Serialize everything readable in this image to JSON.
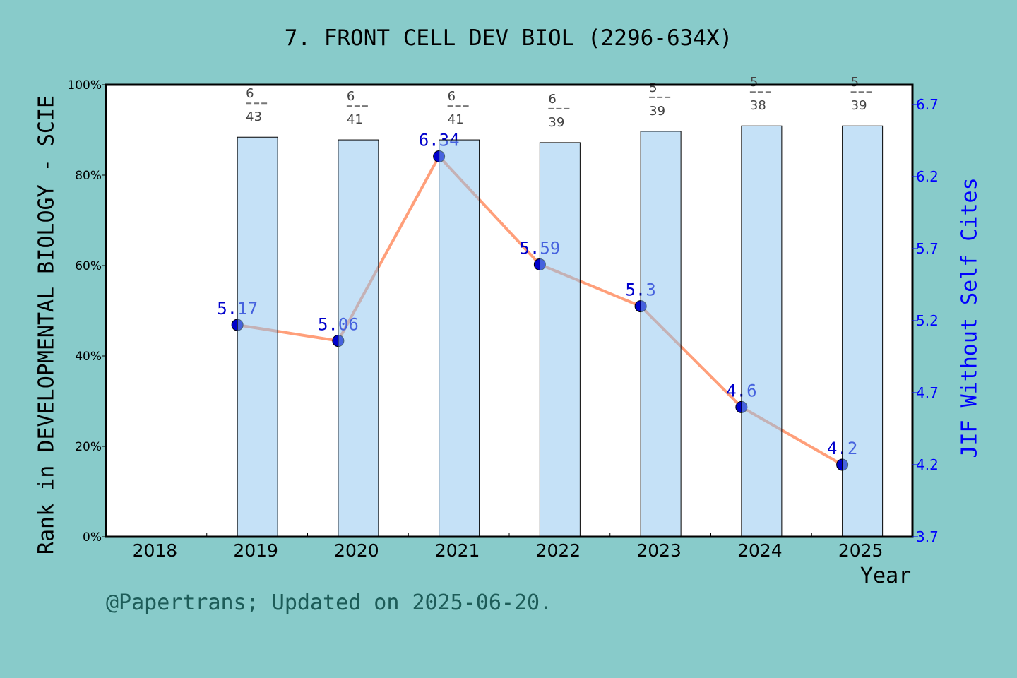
{
  "chart_data": {
    "type": "bar+line",
    "title": "7. FRONT CELL DEV BIOL (2296-634X)",
    "xlabel": "Year",
    "ylabel": "Rank in DEVELOPMENTAL BIOLOGY - SCIE",
    "y2label": "JIF Without Self Cites",
    "categories": [
      "2018",
      "2019",
      "2020",
      "2021",
      "2022",
      "2023",
      "2024",
      "2025"
    ],
    "ylim": [
      0,
      100
    ],
    "yticks": [
      "0%",
      "20%",
      "40%",
      "60%",
      "80%",
      "100%"
    ],
    "y2lim": [
      3.7,
      6.7
    ],
    "y2ticks": [
      "3.7",
      "4.2",
      "4.7",
      "5.2",
      "5.7",
      "6.2",
      "6.7"
    ],
    "bars": {
      "values_percent": [
        null,
        88.4,
        87.8,
        87.8,
        87.2,
        89.7,
        90.9,
        90.9
      ],
      "rank": [
        null,
        "6",
        "6",
        "6",
        "6",
        "5",
        "5",
        "5"
      ],
      "total": [
        null,
        "43",
        "41",
        "41",
        "39",
        "39",
        "38",
        "39"
      ]
    },
    "line": {
      "values": [
        null,
        5.17,
        5.06,
        6.34,
        5.59,
        5.3,
        4.6,
        4.2
      ],
      "labels": [
        null,
        "5.17",
        "5.06",
        "6.34",
        "5.59",
        "5.3",
        "4.6",
        "4.2"
      ]
    },
    "grid": false,
    "colors": {
      "bar": "#c5e0f7",
      "line": "#ff9f7a",
      "marker": "#0000cc",
      "right_axis": "#0000ff",
      "background": "#88cbca"
    }
  },
  "footer": "@Papertrans; Updated on 2025-06-20."
}
